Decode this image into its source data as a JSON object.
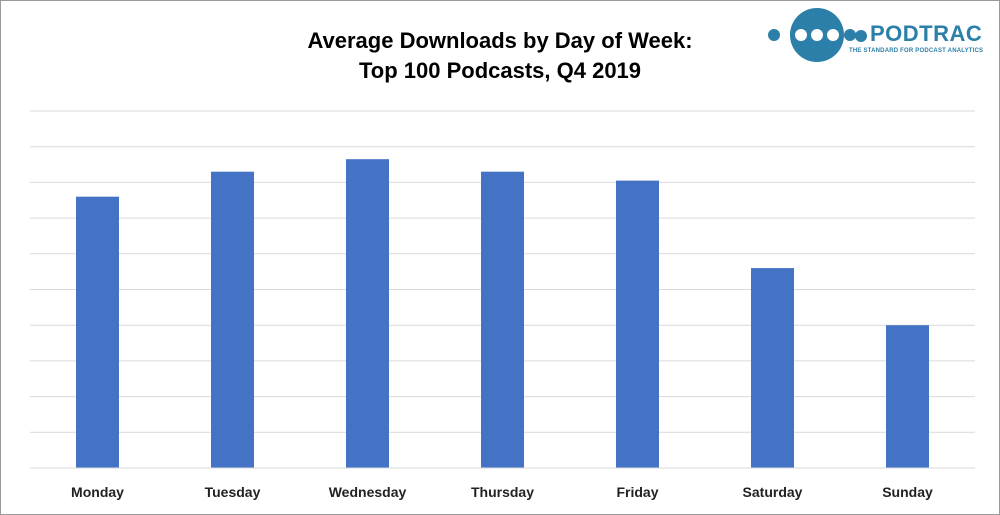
{
  "title_line1": "Average Downloads by Day of Week:",
  "title_line2": "Top 100 Podcasts, Q4 2019",
  "logo": {
    "wordmark": "PODTRAC",
    "tagline": "THE STANDARD FOR PODCAST ANALYTICS",
    "color": "#2b7fa8"
  },
  "chart_data": {
    "type": "bar",
    "title": "Average Downloads by Day of Week: Top 100 Podcasts, Q4 2019",
    "categories": [
      "Monday",
      "Tuesday",
      "Wednesday",
      "Thursday",
      "Friday",
      "Saturday",
      "Sunday"
    ],
    "values": [
      7.6,
      8.3,
      8.65,
      8.3,
      8.05,
      5.6,
      4.0
    ],
    "xlabel": "",
    "ylabel": "",
    "ylim": [
      0,
      10
    ],
    "y_gridlines": 10,
    "y_tick_labels_shown": false,
    "grid": true,
    "legend": "none",
    "bar_color": "#4472c4",
    "grid_color": "#d9d9d9"
  }
}
